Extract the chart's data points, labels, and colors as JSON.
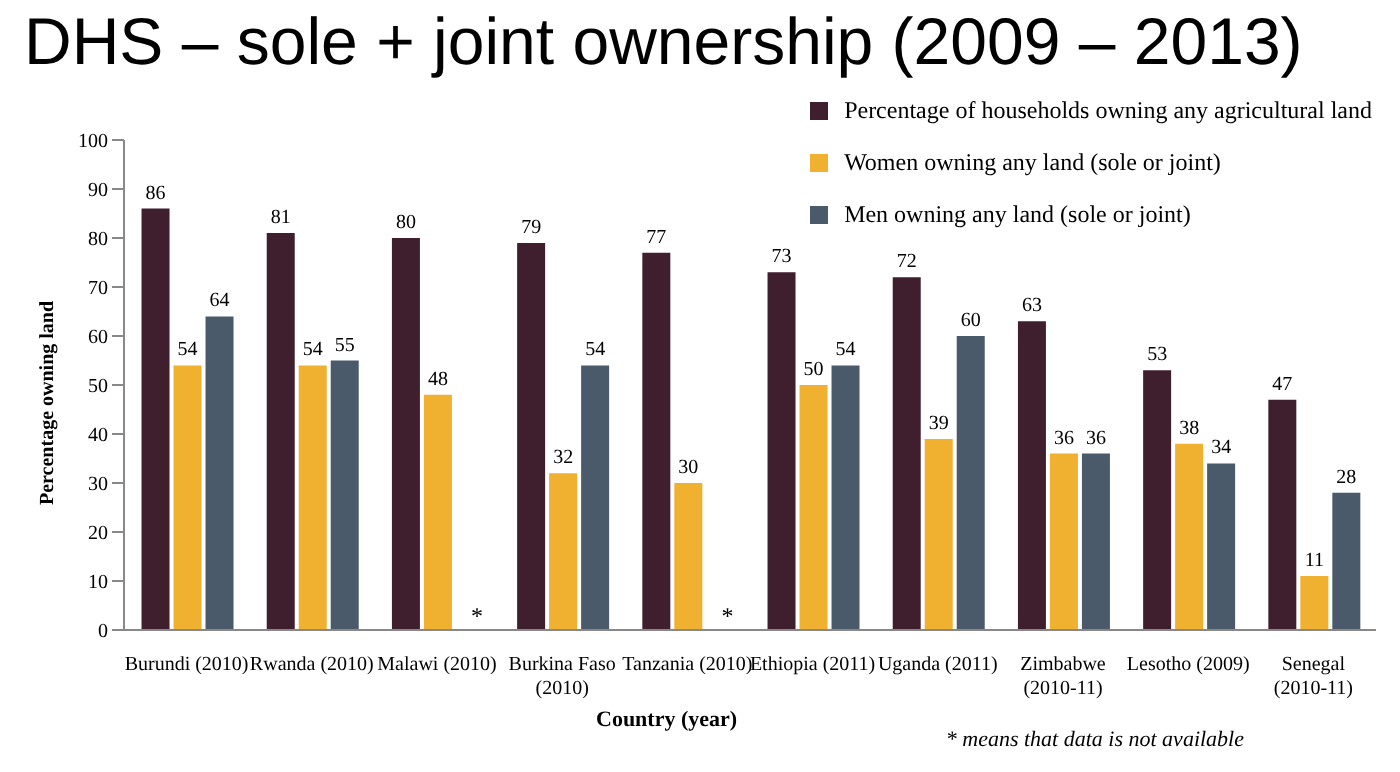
{
  "chart_data": {
    "type": "bar",
    "title": "DHS – sole + joint ownership (2009 – 2013)",
    "xlabel": "Country (year)",
    "ylabel": "Percentage owning land",
    "categories": [
      "Burundi (2010)",
      "Rwanda (2010)",
      "Malawi (2010)",
      "Burkina Faso (2010)",
      "Tanzania (2010)",
      "Ethiopia (2011)",
      "Uganda (2011)",
      "Zimbabwe (2010-11)",
      "Lesotho (2009)",
      "Senegal (2010-11)"
    ],
    "series": [
      {
        "name": "Percentage of households owning any agricultural land",
        "color": "#3f1f2e",
        "values": [
          86,
          81,
          80,
          79,
          77,
          73,
          72,
          63,
          53,
          47
        ]
      },
      {
        "name": "Women owning any land (sole or joint)",
        "color": "#f0b030",
        "values": [
          54,
          54,
          48,
          32,
          30,
          50,
          39,
          36,
          38,
          11
        ]
      },
      {
        "name": "Men owning any land (sole or joint)",
        "color": "#4a5a6a",
        "values": [
          64,
          55,
          null,
          54,
          null,
          54,
          60,
          36,
          34,
          28
        ]
      }
    ],
    "ylim": [
      0,
      100
    ],
    "yticks": [
      0,
      10,
      20,
      30,
      40,
      50,
      60,
      70,
      80,
      90,
      100
    ],
    "data_labels": true,
    "legend": "top right",
    "grid": false,
    "annotations": [
      {
        "text": "*",
        "x": "Malawi (2010)",
        "y": 0
      },
      {
        "text": "*",
        "x": "Tanzania (2010)",
        "y": 0
      },
      "* means that data is not available"
    ]
  }
}
